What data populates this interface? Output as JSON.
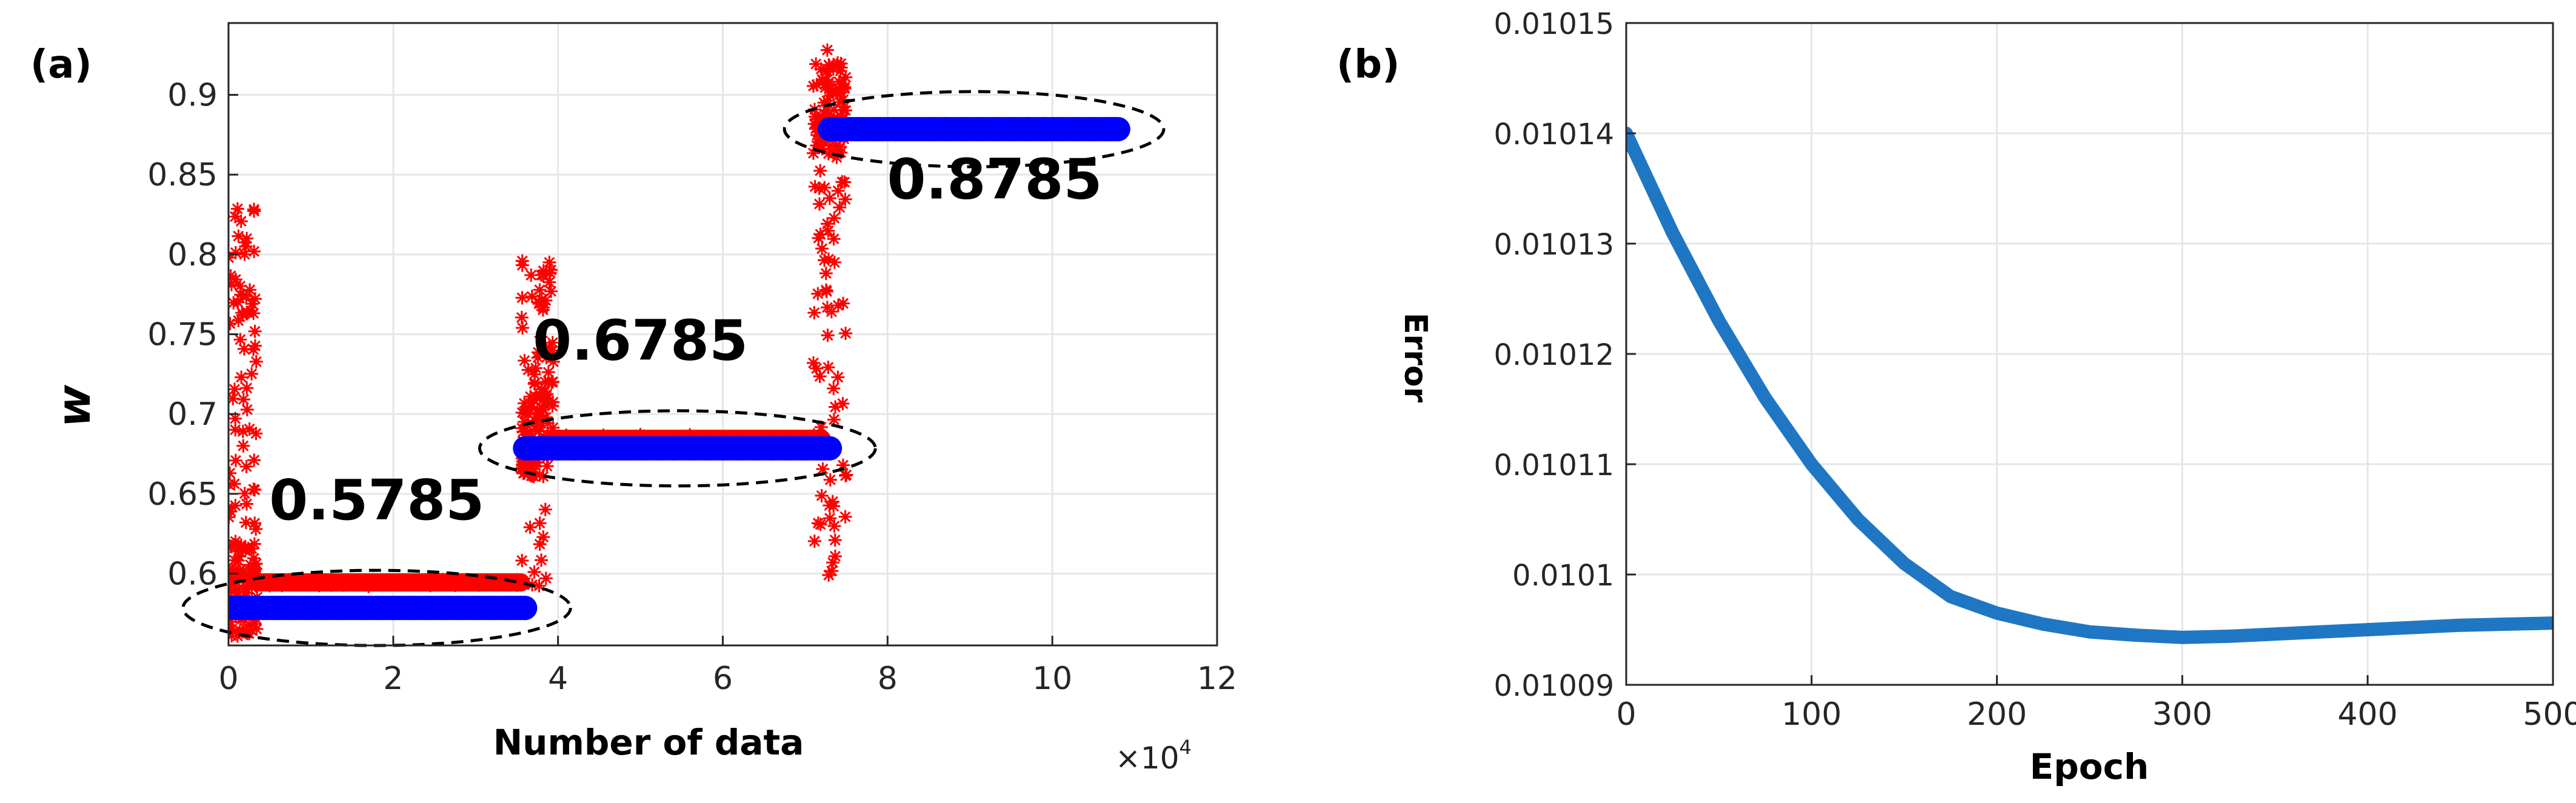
{
  "panels": [
    {
      "panel_label": "(a)",
      "xlabel": "Number of data",
      "ylabel": "w",
      "x_exponent_label": "×10^4",
      "xlim": [
        0,
        12
      ],
      "ylim": [
        0.555,
        0.945
      ],
      "x_ticks": [
        0,
        2,
        4,
        6,
        8,
        10,
        12
      ],
      "y_ticks": [
        0.6,
        0.65,
        0.7,
        0.75,
        0.8,
        0.85,
        0.9
      ],
      "y_tick_labels": [
        "0.6",
        "0.65",
        "0.7",
        "0.75",
        "0.8",
        "0.85",
        "0.9"
      ],
      "annotations": [
        {
          "text": "0.5785",
          "x": 1.8,
          "y": 0.634
        },
        {
          "text": "0.6785",
          "x": 5.0,
          "y": 0.734
        },
        {
          "text": "0.8785",
          "x": 9.3,
          "y": 0.835
        }
      ]
    },
    {
      "panel_label": "(b)",
      "xlabel": "Epoch",
      "ylabel": "Error",
      "xlim": [
        0,
        500
      ],
      "ylim": [
        0.01009,
        0.01015
      ],
      "x_ticks": [
        0,
        100,
        200,
        300,
        400,
        500
      ],
      "y_ticks": [
        0.01009,
        0.0101,
        0.01011,
        0.01012,
        0.01013,
        0.01014,
        0.01015
      ],
      "y_tick_labels": [
        "0.01009",
        "0.0101",
        "0.01011",
        "0.01012",
        "0.01013",
        "0.01014",
        "0.01015"
      ]
    }
  ],
  "chart_data": [
    {
      "type": "scatter",
      "xlim": [
        0,
        12
      ],
      "ylim": [
        0.555,
        0.945
      ],
      "grid": true,
      "series": [
        {
          "color": "#ff0000",
          "marker": "asterisk",
          "segments": [
            {
              "x_range": [
                0.0,
                0.35
              ],
              "y_range": [
                0.585,
                0.83
              ],
              "settle": 0.5785
            },
            {
              "x_range": [
                0.35,
                3.55
              ],
              "y": 0.5945
            },
            {
              "x_range": [
                3.55,
                3.95
              ],
              "y_range": [
                0.59,
                0.8
              ],
              "settle": 0.6785
            },
            {
              "x_range": [
                3.95,
                7.2
              ],
              "y": 0.6845
            },
            {
              "x_range": [
                7.1,
                7.5
              ],
              "y_range": [
                0.598,
                0.932
              ],
              "settle": 0.8785
            }
          ]
        },
        {
          "color": "#0000ff",
          "marker": "circle",
          "segments": [
            {
              "x_range": [
                0.0,
                3.6
              ],
              "y": 0.5785
            },
            {
              "x_range": [
                3.6,
                7.3
              ],
              "y": 0.6785
            },
            {
              "x_range": [
                7.3,
                10.8
              ],
              "y": 0.8785
            }
          ]
        }
      ]
    },
    {
      "type": "line",
      "xlim": [
        0,
        500
      ],
      "ylim": [
        0.01009,
        0.01015
      ],
      "grid": true,
      "series": [
        {
          "color": "#1f77c4",
          "x": [
            0,
            25,
            50,
            75,
            100,
            125,
            150,
            175,
            200,
            225,
            250,
            275,
            300,
            325,
            350,
            375,
            400,
            425,
            450,
            475,
            500
          ],
          "y": [
            0.01014,
            0.010131,
            0.010123,
            0.010116,
            0.01011,
            0.010105,
            0.010101,
            0.010098,
            0.0100965,
            0.0100955,
            0.0100948,
            0.0100945,
            0.0100943,
            0.0100944,
            0.0100946,
            0.0100948,
            0.010095,
            0.0100952,
            0.0100954,
            0.0100955,
            0.0100956
          ]
        }
      ]
    }
  ]
}
